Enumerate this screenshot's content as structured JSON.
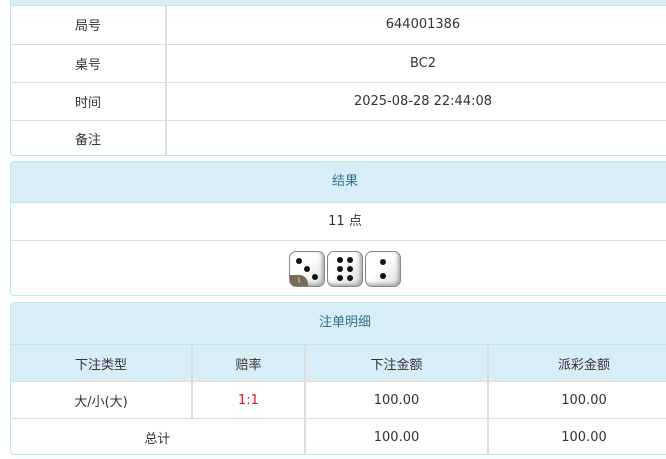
{
  "info": {
    "rows": [
      {
        "label": "局号",
        "value": "644001386"
      },
      {
        "label": "桌号",
        "value": "BC2"
      },
      {
        "label": "时间",
        "value": "2025-08-28 22:44:08"
      },
      {
        "label": "备注",
        "value": ""
      }
    ]
  },
  "result": {
    "title": "结果",
    "points": "11 点",
    "dice": [
      3,
      6,
      2
    ],
    "info_badge": "i"
  },
  "bets": {
    "title": "注单明细",
    "headers": [
      "下注类型",
      "赔率",
      "下注金额",
      "派彩金额"
    ],
    "rows": [
      {
        "type": "大/小(大)",
        "odds": "1:1",
        "bet": "100.00",
        "payout": "100.00"
      }
    ],
    "total": {
      "label": "总计",
      "bet": "100.00",
      "payout": "100.00"
    },
    "odds_color": "#e4161e"
  }
}
